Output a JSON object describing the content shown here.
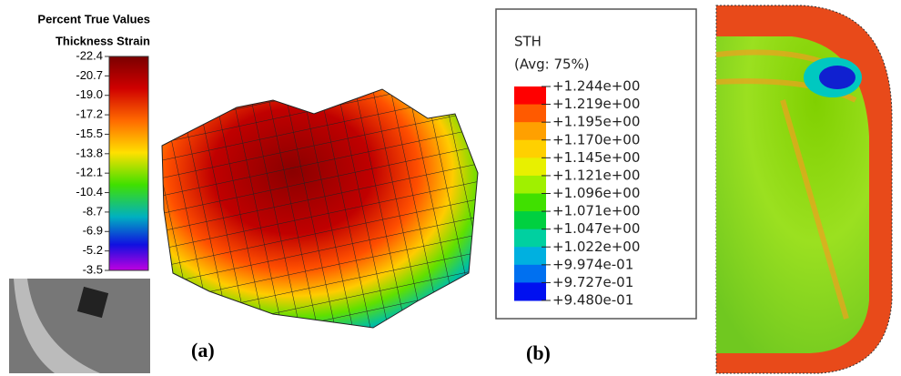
{
  "panel_a": {
    "legend": {
      "title": "Percent True Values",
      "subtitle": "Thickness Strain",
      "labels": [
        "-22.4",
        "-20.7",
        "-19.0",
        "-17.2",
        "-15.5",
        "-13.8",
        "-12.1",
        "-10.4",
        "-8.7",
        "-6.9",
        "-5.2",
        "-3.5"
      ]
    },
    "caption": "(a)"
  },
  "panel_b": {
    "legend": {
      "title": "STH",
      "subtitle": "(Avg: 75%)",
      "labels": [
        "+1.244e+00",
        "+1.219e+00",
        "+1.195e+00",
        "+1.170e+00",
        "+1.145e+00",
        "+1.121e+00",
        "+1.096e+00",
        "+1.071e+00",
        "+1.047e+00",
        "+1.022e+00",
        "+9.974e-01",
        "+9.727e-01",
        "+9.480e-01"
      ]
    },
    "caption": "(b)"
  }
}
